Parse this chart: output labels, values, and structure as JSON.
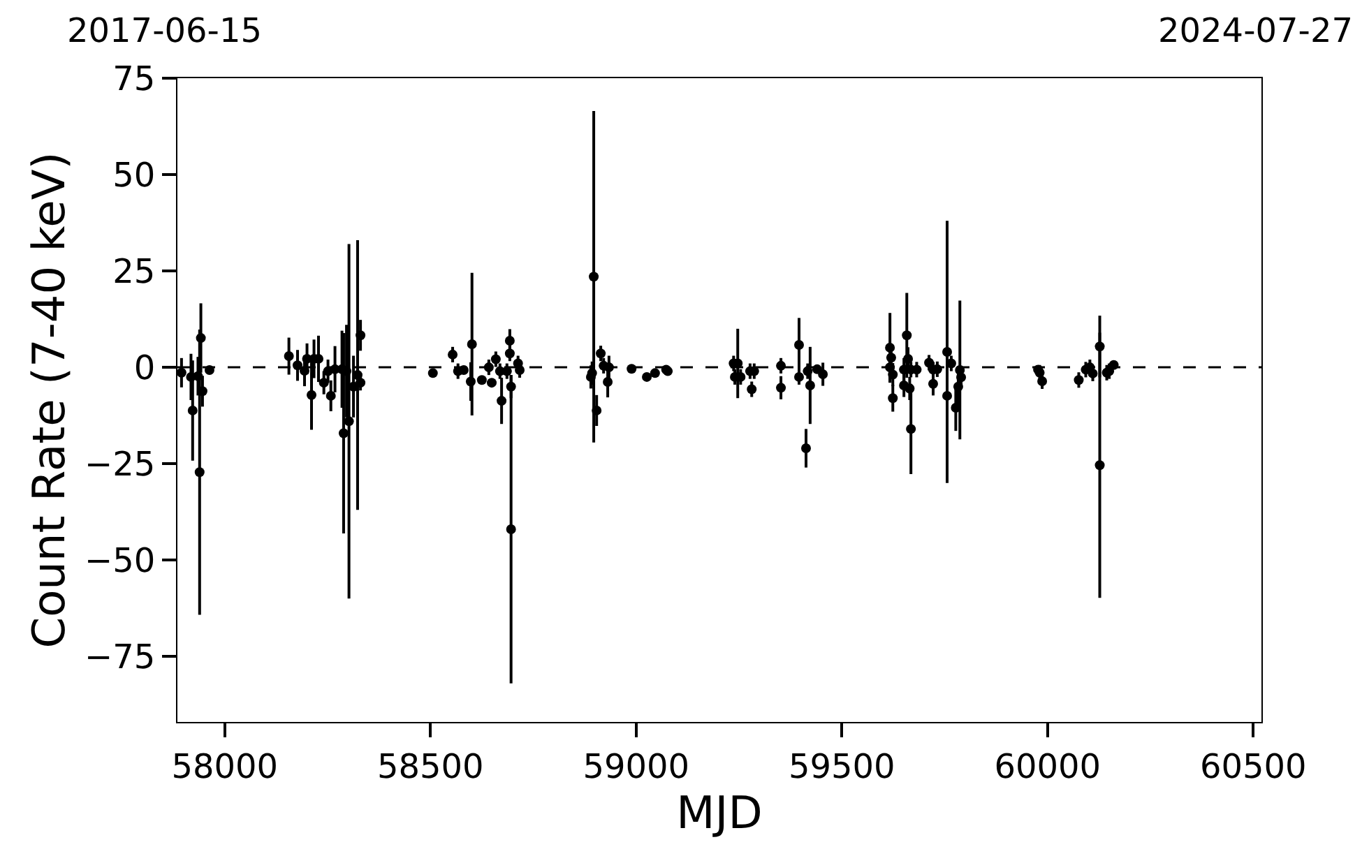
{
  "chart_data": {
    "type": "scatter",
    "xlabel": "MJD",
    "ylabel": "Count Rate (7-40 keV)",
    "annotations": [
      "2017-06-15",
      "2024-07-27"
    ],
    "xlim": [
      57885,
      60520
    ],
    "xticks": [
      58000,
      58500,
      59000,
      59500,
      60000,
      60500
    ],
    "ylim": [
      -92,
      75
    ],
    "yticks": [
      -75,
      -50,
      -25,
      0,
      25,
      50,
      75
    ],
    "grid": false,
    "marker": "circle",
    "ref_lines": [
      {
        "axis": "y",
        "value": 0,
        "label": null,
        "color": "#000000",
        "line_style": "dashed"
      }
    ],
    "series": [
      {
        "color": "#000000",
        "x": [
          57895,
          57918,
          57922,
          57935,
          57939,
          57942,
          57946,
          57963,
          58156,
          58177,
          58194,
          58200,
          58211,
          58217,
          58228,
          58241,
          58251,
          58258,
          58268,
          58285,
          58289,
          58296,
          58302,
          58313,
          58323,
          58330,
          58330,
          58506,
          58554,
          58567,
          58581,
          58601,
          58598,
          58625,
          58642,
          58649,
          58659,
          58669,
          58673,
          58686,
          58693,
          58693,
          58696,
          58696,
          58713,
          58717,
          58897,
          58890,
          58893,
          58904,
          58914,
          58921,
          58931,
          58934,
          58989,
          59026,
          59046,
          59073,
          59077,
          59237,
          59240,
          59247,
          59254,
          59277,
          59281,
          59287,
          59352,
          59352,
          59396,
          59396,
          59413,
          59423,
          59417,
          59440,
          59454,
          59617,
          59617,
          59620,
          59624,
          59624,
          59651,
          59651,
          59658,
          59661,
          59665,
          59668,
          59668,
          59682,
          59712,
          59722,
          59722,
          59732,
          59756,
          59756,
          59766,
          59777,
          59787,
          59783,
          59790,
          59977,
          59981,
          59987,
          60076,
          60093,
          60103,
          60110,
          60127,
          60127,
          60144,
          60150,
          60161
        ],
        "values": [
          -1.4,
          -2.5,
          -11.2,
          -2.3,
          -27.2,
          7.6,
          -6.2,
          -0.7,
          2.9,
          0.5,
          -0.9,
          2.2,
          -7.2,
          2.2,
          2.2,
          -4,
          -1,
          -7.4,
          -0.5,
          -0.5,
          -17.1,
          -1,
          -14,
          -5,
          -2,
          8.3,
          -4,
          -1.5,
          3.3,
          -1,
          -0.7,
          6,
          -3.7,
          -3.3,
          0,
          -4,
          2.1,
          -1,
          -8.7,
          -1,
          6.9,
          3.6,
          -42,
          -5,
          1,
          -0.7,
          23.5,
          -2.5,
          -1.5,
          -11.2,
          3.6,
          0.4,
          -3.8,
          0,
          -0.4,
          -2.5,
          -1.5,
          -0.6,
          -1,
          1,
          -2.5,
          1,
          -2.5,
          -1,
          -5.7,
          -1,
          0.4,
          -5.3,
          5.8,
          -2.5,
          -21,
          -4.7,
          -1,
          -0.5,
          -1.8,
          5.1,
          0,
          2.5,
          -8,
          -1.9,
          -0.6,
          -4.7,
          8.3,
          2.2,
          -5.5,
          -16,
          -0.6,
          -0.6,
          1.2,
          -4.3,
          -0.6,
          -0.5,
          4,
          -7.4,
          1,
          -10.5,
          -0.7,
          -5,
          -2.6,
          -0.6,
          -1.4,
          -3.6,
          -3.3,
          -0.6,
          0,
          -1.6,
          5.4,
          -25.4,
          -1.4,
          -1,
          0.6
        ],
        "errors": [
          3.8,
          6,
          13,
          5,
          37,
          9,
          4,
          1,
          4.8,
          4,
          4,
          4,
          9,
          5,
          6,
          3,
          3,
          4,
          6,
          10,
          26,
          12,
          46,
          8,
          35,
          4,
          2,
          1,
          2,
          2,
          1,
          18.5,
          5,
          1,
          2,
          1,
          2,
          2,
          6,
          2,
          3,
          2,
          40,
          3,
          2,
          2,
          43,
          3,
          3,
          4,
          2,
          2,
          4,
          3,
          1,
          1,
          1,
          1,
          1,
          2,
          2,
          9,
          2,
          2,
          2,
          2,
          2,
          3,
          7,
          2,
          5,
          10,
          2,
          1,
          3,
          9,
          4,
          3,
          3.5,
          3,
          3,
          3,
          11,
          3,
          3,
          11.7,
          2,
          2,
          2,
          3,
          2,
          2,
          34,
          2,
          2,
          6,
          18,
          5,
          3,
          1,
          2,
          2,
          2,
          2,
          2,
          2,
          8,
          34.4,
          2,
          2,
          1
        ]
      }
    ]
  }
}
